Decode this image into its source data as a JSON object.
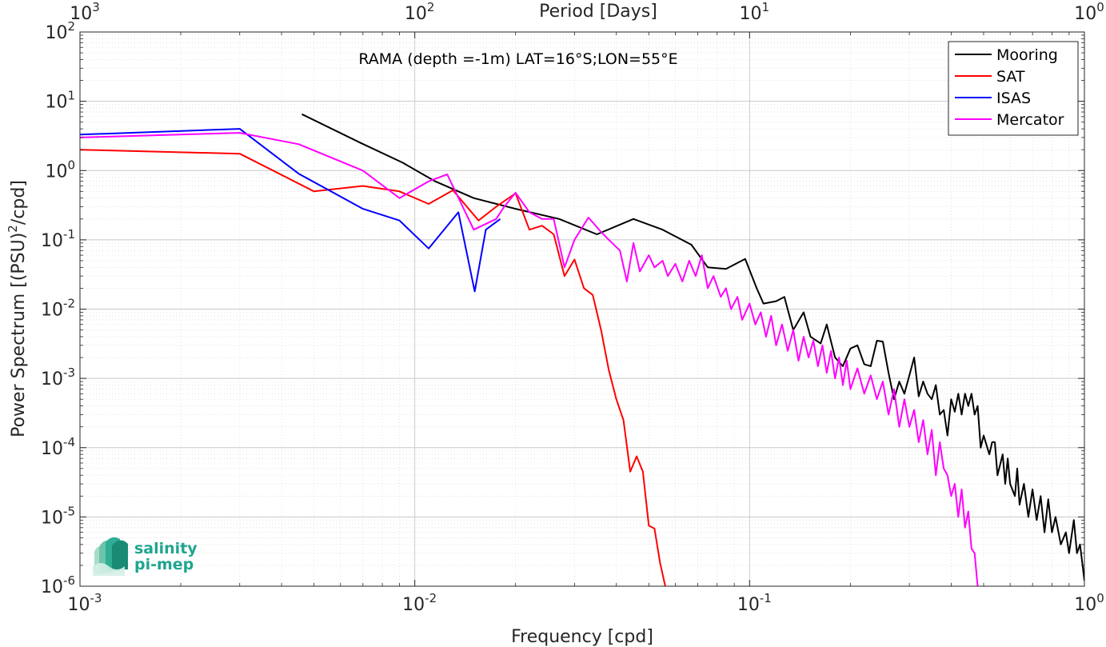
{
  "chart_data": {
    "type": "line",
    "title": "RAMA (depth =-1m) LAT=16°S;LON=55°E",
    "xlabel": "Frequency [cpd]",
    "ylabel": "Power Spectrum [(PSU)²/cpd]",
    "top_xlabel": "Period [Days]",
    "xscale": "log",
    "yscale": "log",
    "xlim": [
      0.001,
      1
    ],
    "ylim": [
      1e-06,
      100
    ],
    "grid": true,
    "legend_position": "top-right",
    "x_ticks": [
      {
        "base": "10",
        "exp": "-3"
      },
      {
        "base": "10",
        "exp": "-2"
      },
      {
        "base": "10",
        "exp": "-1"
      },
      {
        "base": "10",
        "exp": "0"
      }
    ],
    "top_ticks": [
      {
        "base": "10",
        "exp": "3"
      },
      {
        "base": "10",
        "exp": "2"
      },
      {
        "base": "10",
        "exp": "1"
      },
      {
        "base": "10",
        "exp": "0"
      }
    ],
    "y_ticks": [
      {
        "base": "10",
        "exp": "2"
      },
      {
        "base": "10",
        "exp": "1"
      },
      {
        "base": "10",
        "exp": "0"
      },
      {
        "base": "10",
        "exp": "-1"
      },
      {
        "base": "10",
        "exp": "-2"
      },
      {
        "base": "10",
        "exp": "-3"
      },
      {
        "base": "10",
        "exp": "-4"
      },
      {
        "base": "10",
        "exp": "-5"
      },
      {
        "base": "10",
        "exp": "-6"
      }
    ],
    "series": [
      {
        "name": "Mooring",
        "color": "#000000",
        "points": [
          [
            0.0046,
            6.5
          ],
          [
            0.0069,
            2.5
          ],
          [
            0.0092,
            1.3
          ],
          [
            0.0115,
            0.7
          ],
          [
            0.015,
            0.4
          ],
          [
            0.02,
            0.28
          ],
          [
            0.027,
            0.2
          ],
          [
            0.035,
            0.12
          ],
          [
            0.045,
            0.2
          ],
          [
            0.055,
            0.14
          ],
          [
            0.067,
            0.085
          ],
          [
            0.075,
            0.04
          ],
          [
            0.085,
            0.038
          ],
          [
            0.097,
            0.053
          ],
          [
            0.105,
            0.02
          ],
          [
            0.11,
            0.012
          ],
          [
            0.12,
            0.013
          ],
          [
            0.127,
            0.015
          ],
          [
            0.135,
            0.005
          ],
          [
            0.145,
            0.009
          ],
          [
            0.152,
            0.004
          ],
          [
            0.163,
            0.0032
          ],
          [
            0.17,
            0.006
          ],
          [
            0.18,
            0.002
          ],
          [
            0.19,
            0.0015
          ],
          [
            0.2,
            0.0027
          ],
          [
            0.21,
            0.003
          ],
          [
            0.22,
            0.0016
          ],
          [
            0.23,
            0.0015
          ],
          [
            0.24,
            0.0035
          ],
          [
            0.25,
            0.0034
          ],
          [
            0.26,
            0.0012
          ],
          [
            0.27,
            0.0005
          ],
          [
            0.28,
            0.0009
          ],
          [
            0.29,
            0.0006
          ],
          [
            0.3,
            0.0011
          ],
          [
            0.31,
            0.002
          ],
          [
            0.32,
            0.00055
          ],
          [
            0.33,
            0.0009
          ],
          [
            0.34,
            0.0006
          ],
          [
            0.35,
            0.0005
          ],
          [
            0.36,
            0.0008
          ],
          [
            0.37,
            0.0003
          ],
          [
            0.38,
            0.00035
          ],
          [
            0.39,
            0.00015
          ],
          [
            0.4,
            0.0005
          ],
          [
            0.41,
            0.00033
          ],
          [
            0.42,
            0.0006
          ],
          [
            0.43,
            0.0003
          ],
          [
            0.44,
            0.0006
          ],
          [
            0.45,
            0.0004
          ],
          [
            0.46,
            0.0006
          ],
          [
            0.47,
            0.0003
          ],
          [
            0.48,
            0.0004
          ],
          [
            0.49,
            0.0001
          ],
          [
            0.5,
            0.00015
          ],
          [
            0.52,
            8e-05
          ],
          [
            0.53,
            0.00012
          ],
          [
            0.54,
            0.00012
          ],
          [
            0.55,
            4e-05
          ],
          [
            0.57,
            8e-05
          ],
          [
            0.58,
            3e-05
          ],
          [
            0.59,
            7e-05
          ],
          [
            0.6,
            3e-05
          ],
          [
            0.62,
            2e-05
          ],
          [
            0.63,
            5e-05
          ],
          [
            0.64,
            1.5e-05
          ],
          [
            0.66,
            3e-05
          ],
          [
            0.68,
            1e-05
          ],
          [
            0.7,
            2.5e-05
          ],
          [
            0.72,
            9e-06
          ],
          [
            0.74,
            2e-05
          ],
          [
            0.76,
            6e-06
          ],
          [
            0.78,
            1.8e-05
          ],
          [
            0.8,
            6e-06
          ],
          [
            0.82,
            1e-05
          ],
          [
            0.85,
            4e-06
          ],
          [
            0.88,
            6e-06
          ],
          [
            0.9,
            3e-06
          ],
          [
            0.93,
            9e-06
          ],
          [
            0.95,
            3e-06
          ],
          [
            0.97,
            4e-06
          ],
          [
            0.99,
            1.8e-06
          ],
          [
            1.0,
            1.2e-06
          ]
        ]
      },
      {
        "name": "SAT",
        "color": "#ff0000",
        "points": [
          [
            0.001,
            2.0
          ],
          [
            0.003,
            1.75
          ],
          [
            0.005,
            0.5
          ],
          [
            0.007,
            0.6
          ],
          [
            0.009,
            0.5
          ],
          [
            0.011,
            0.33
          ],
          [
            0.013,
            0.52
          ],
          [
            0.0155,
            0.19
          ],
          [
            0.0175,
            0.3
          ],
          [
            0.02,
            0.47
          ],
          [
            0.022,
            0.14
          ],
          [
            0.024,
            0.16
          ],
          [
            0.026,
            0.12
          ],
          [
            0.028,
            0.03
          ],
          [
            0.03,
            0.052
          ],
          [
            0.032,
            0.02
          ],
          [
            0.034,
            0.016
          ],
          [
            0.036,
            0.005
          ],
          [
            0.038,
            0.0013
          ],
          [
            0.04,
            0.0005
          ],
          [
            0.042,
            0.00025
          ],
          [
            0.044,
            4.5e-05
          ],
          [
            0.046,
            7.5e-05
          ],
          [
            0.048,
            4.5e-05
          ],
          [
            0.05,
            7.5e-06
          ],
          [
            0.052,
            6.8e-06
          ],
          [
            0.054,
            2.2e-06
          ],
          [
            0.056,
            1e-06
          ]
        ]
      },
      {
        "name": "ISAS",
        "color": "#0000ff",
        "points": [
          [
            0.001,
            3.3
          ],
          [
            0.003,
            4.0
          ],
          [
            0.0045,
            0.9
          ],
          [
            0.007,
            0.28
          ],
          [
            0.009,
            0.19
          ],
          [
            0.011,
            0.075
          ],
          [
            0.0135,
            0.25
          ],
          [
            0.0151,
            0.018
          ],
          [
            0.0163,
            0.14
          ],
          [
            0.018,
            0.2
          ]
        ]
      },
      {
        "name": "Mercator",
        "color": "#ff00ff",
        "points": [
          [
            0.001,
            3.0
          ],
          [
            0.003,
            3.5
          ],
          [
            0.0045,
            2.4
          ],
          [
            0.007,
            1.0
          ],
          [
            0.009,
            0.4
          ],
          [
            0.011,
            0.7
          ],
          [
            0.0125,
            0.88
          ],
          [
            0.015,
            0.14
          ],
          [
            0.0175,
            0.2
          ],
          [
            0.0185,
            0.3
          ],
          [
            0.02,
            0.48
          ],
          [
            0.022,
            0.25
          ],
          [
            0.024,
            0.2
          ],
          [
            0.026,
            0.2
          ],
          [
            0.028,
            0.04
          ],
          [
            0.03,
            0.1
          ],
          [
            0.033,
            0.21
          ],
          [
            0.036,
            0.13
          ],
          [
            0.038,
            0.1
          ],
          [
            0.041,
            0.07
          ],
          [
            0.043,
            0.025
          ],
          [
            0.045,
            0.09
          ],
          [
            0.047,
            0.035
          ],
          [
            0.05,
            0.06
          ],
          [
            0.052,
            0.04
          ],
          [
            0.055,
            0.05
          ],
          [
            0.057,
            0.03
          ],
          [
            0.06,
            0.045
          ],
          [
            0.063,
            0.025
          ],
          [
            0.066,
            0.05
          ],
          [
            0.069,
            0.03
          ],
          [
            0.072,
            0.06
          ],
          [
            0.075,
            0.02
          ],
          [
            0.078,
            0.03
          ],
          [
            0.082,
            0.015
          ],
          [
            0.085,
            0.02
          ],
          [
            0.088,
            0.01
          ],
          [
            0.092,
            0.015
          ],
          [
            0.095,
            0.007
          ],
          [
            0.1,
            0.012
          ],
          [
            0.104,
            0.006
          ],
          [
            0.108,
            0.009
          ],
          [
            0.112,
            0.004
          ],
          [
            0.116,
            0.008
          ],
          [
            0.12,
            0.003
          ],
          [
            0.125,
            0.006
          ],
          [
            0.13,
            0.0025
          ],
          [
            0.135,
            0.005
          ],
          [
            0.14,
            0.0018
          ],
          [
            0.145,
            0.004
          ],
          [
            0.15,
            0.002
          ],
          [
            0.155,
            0.0035
          ],
          [
            0.16,
            0.0015
          ],
          [
            0.165,
            0.003
          ],
          [
            0.17,
            0.0012
          ],
          [
            0.175,
            0.0025
          ],
          [
            0.18,
            0.001
          ],
          [
            0.185,
            0.002
          ],
          [
            0.19,
            0.0008
          ],
          [
            0.195,
            0.0018
          ],
          [
            0.2,
            0.0007
          ],
          [
            0.21,
            0.0014
          ],
          [
            0.22,
            0.0006
          ],
          [
            0.23,
            0.0011
          ],
          [
            0.24,
            0.0005
          ],
          [
            0.25,
            0.0009
          ],
          [
            0.26,
            0.0003
          ],
          [
            0.27,
            0.0007
          ],
          [
            0.28,
            0.0002
          ],
          [
            0.29,
            0.0005
          ],
          [
            0.3,
            0.0002
          ],
          [
            0.31,
            0.00035
          ],
          [
            0.32,
            0.00012
          ],
          [
            0.33,
            0.00025
          ],
          [
            0.34,
            8e-05
          ],
          [
            0.35,
            0.00018
          ],
          [
            0.36,
            4e-05
          ],
          [
            0.37,
            0.00012
          ],
          [
            0.38,
            5e-05
          ],
          [
            0.39,
            4e-05
          ],
          [
            0.4,
            2e-05
          ],
          [
            0.41,
            3e-05
          ],
          [
            0.42,
            1e-05
          ],
          [
            0.43,
            2.5e-05
          ],
          [
            0.44,
            7e-06
          ],
          [
            0.45,
            1.2e-05
          ],
          [
            0.46,
            3.5e-06
          ],
          [
            0.47,
            3e-06
          ],
          [
            0.48,
            1e-06
          ]
        ]
      }
    ]
  },
  "logo": {
    "line1": "salinity",
    "line2": "pi-mep"
  }
}
